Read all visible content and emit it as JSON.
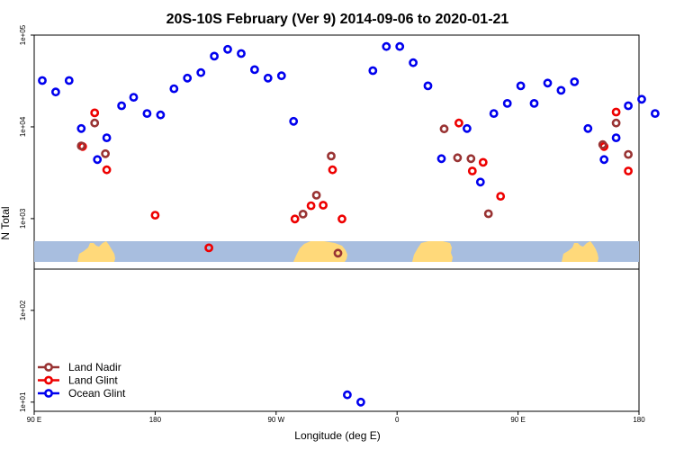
{
  "chart_data": {
    "type": "scatter",
    "title": "20S-10S February (Ver 9)   2014-09-06 to 2020-01-21",
    "xlabel": "Longitude (deg E)",
    "ylabel": "N Total",
    "xlim": [
      90,
      540
    ],
    "ylim_log10": [
      0.9,
      5.0
    ],
    "x_scale": "longitude, wrapping 90E to 180 (continuous 90 to 540)",
    "y_scale": "log",
    "x_ticks": [
      {
        "value": 90,
        "label": "90 E"
      },
      {
        "value": 180,
        "label": "180"
      },
      {
        "value": 270,
        "label": "90 W"
      },
      {
        "value": 360,
        "label": "0"
      },
      {
        "value": 450,
        "label": "90 E"
      },
      {
        "value": 540,
        "label": "180"
      }
    ],
    "y_ticks": [
      {
        "value": 10,
        "label": "1e+01"
      },
      {
        "value": 100,
        "label": "1e+02"
      },
      {
        "value": 1000,
        "label": "1e+03"
      },
      {
        "value": 10000,
        "label": "1e+04"
      },
      {
        "value": 100000,
        "label": "1e+05"
      }
    ],
    "legend_position": "bottom-left",
    "series": [
      {
        "name": "Ocean Glint",
        "color": "#0000ee",
        "points": [
          [
            96,
            32000
          ],
          [
            106,
            24000
          ],
          [
            116,
            32000
          ],
          [
            125,
            9600
          ],
          [
            137,
            4400
          ],
          [
            144,
            7600
          ],
          [
            155,
            17000
          ],
          [
            164,
            21000
          ],
          [
            174,
            14000
          ],
          [
            184,
            13500
          ],
          [
            194,
            26000
          ],
          [
            204,
            34000
          ],
          [
            214,
            39000
          ],
          [
            224,
            59000
          ],
          [
            234,
            70000
          ],
          [
            244,
            63000
          ],
          [
            254,
            42000
          ],
          [
            264,
            34000
          ],
          [
            274,
            36000
          ],
          [
            283,
            11500
          ],
          [
            323,
            12
          ],
          [
            333,
            10
          ],
          [
            342,
            41000
          ],
          [
            352,
            75000
          ],
          [
            362,
            75000
          ],
          [
            372,
            50000
          ],
          [
            383,
            28000
          ],
          [
            393,
            4500
          ],
          [
            412,
            9600
          ],
          [
            422,
            2500
          ],
          [
            432,
            14000
          ],
          [
            442,
            18000
          ],
          [
            452,
            28000
          ],
          [
            462,
            18000
          ],
          [
            472,
            30000
          ],
          [
            482,
            25000
          ],
          [
            492,
            31000
          ],
          [
            502,
            9600
          ],
          [
            514,
            4400
          ],
          [
            523,
            7600
          ],
          [
            532,
            17000
          ],
          [
            542,
            20000
          ],
          [
            552,
            14000
          ]
        ]
      },
      {
        "name": "Land Glint",
        "color": "#ee0000",
        "points": [
          [
            126,
            6100
          ],
          [
            135,
            14200
          ],
          [
            144,
            3400
          ],
          [
            180,
            1090
          ],
          [
            220,
            480
          ],
          [
            284,
            990
          ],
          [
            296,
            1380
          ],
          [
            305,
            1400
          ],
          [
            312,
            3400
          ],
          [
            319,
            990
          ],
          [
            406,
            11000
          ],
          [
            416,
            3300
          ],
          [
            424,
            4100
          ],
          [
            437,
            1750
          ],
          [
            514,
            6100
          ],
          [
            523,
            14500
          ],
          [
            532,
            3300
          ]
        ]
      },
      {
        "name": "Land Nadir",
        "color": "#993333",
        "points": [
          [
            125,
            6200
          ],
          [
            135,
            11000
          ],
          [
            143,
            5100
          ],
          [
            290,
            1120
          ],
          [
            300,
            1800
          ],
          [
            311,
            4800
          ],
          [
            316,
            420
          ],
          [
            395,
            9500
          ],
          [
            405,
            4600
          ],
          [
            415,
            4500
          ],
          [
            428,
            1130
          ],
          [
            513,
            6400
          ],
          [
            523,
            11000
          ],
          [
            532,
            5000
          ]
        ]
      }
    ]
  }
}
